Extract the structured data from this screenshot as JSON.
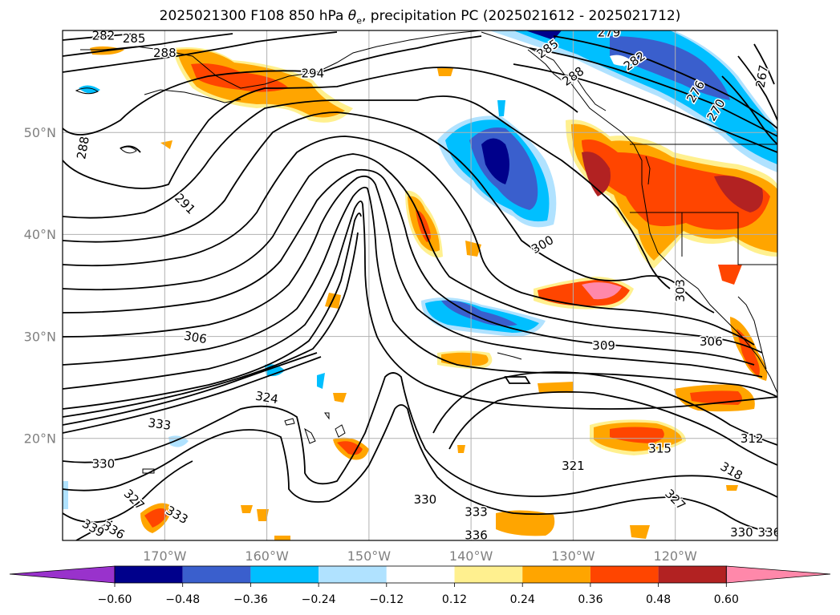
{
  "title": {
    "prefix": "2025021300 F108 850 hPa ",
    "symbol": "θ",
    "symbol_sub": "e",
    "suffix": ", precipitation PC (2025021612 - 2025021712)"
  },
  "map": {
    "lon_range": [
      -180,
      -110
    ],
    "lat_range": [
      10,
      60
    ],
    "lon_ticks": [
      {
        "value": -170,
        "label": "170°W"
      },
      {
        "value": -160,
        "label": "160°W"
      },
      {
        "value": -150,
        "label": "150°W"
      },
      {
        "value": -140,
        "label": "140°W"
      },
      {
        "value": -130,
        "label": "130°W"
      },
      {
        "value": -120,
        "label": "120°W"
      }
    ],
    "lat_ticks": [
      {
        "value": 20,
        "label": "20°N"
      },
      {
        "value": 30,
        "label": "30°N"
      },
      {
        "value": 40,
        "label": "40°N"
      },
      {
        "value": 50,
        "label": "50°N"
      }
    ],
    "gridlines": true,
    "contour_labels": [
      {
        "text": "282",
        "lon": -176,
        "lat": 59.5,
        "rot": 0
      },
      {
        "text": "285",
        "lon": -173,
        "lat": 59.2,
        "rot": 0
      },
      {
        "text": "288",
        "lon": -170,
        "lat": 57.8,
        "rot": 0
      },
      {
        "text": "294",
        "lon": -155.5,
        "lat": 55.8,
        "rot": 0
      },
      {
        "text": "279",
        "lon": -126.5,
        "lat": 59.8,
        "rot": 0
      },
      {
        "text": "285",
        "lon": -132.5,
        "lat": 58.2,
        "rot": 35
      },
      {
        "text": "288",
        "lon": -130,
        "lat": 55.5,
        "rot": 35
      },
      {
        "text": "282",
        "lon": -124,
        "lat": 57,
        "rot": 35
      },
      {
        "text": "276",
        "lon": -118,
        "lat": 54,
        "rot": 60
      },
      {
        "text": "270",
        "lon": -116,
        "lat": 52.2,
        "rot": 60
      },
      {
        "text": "267",
        "lon": -111.5,
        "lat": 55.5,
        "rot": 80
      },
      {
        "text": "288",
        "lon": -178,
        "lat": 48.5,
        "rot": 80
      },
      {
        "text": "291",
        "lon": -168,
        "lat": 43,
        "rot": -45
      },
      {
        "text": "300",
        "lon": -133,
        "lat": 39,
        "rot": 30
      },
      {
        "text": "303",
        "lon": -119.5,
        "lat": 34.5,
        "rot": 90
      },
      {
        "text": "306",
        "lon": -167,
        "lat": 29.9,
        "rot": -10
      },
      {
        "text": "309",
        "lon": -127,
        "lat": 29.1,
        "rot": 0
      },
      {
        "text": "306",
        "lon": -116.5,
        "lat": 29.5,
        "rot": 0
      },
      {
        "text": "324",
        "lon": -160,
        "lat": 24,
        "rot": -10
      },
      {
        "text": "333",
        "lon": -170.5,
        "lat": 21.4,
        "rot": -8
      },
      {
        "text": "315",
        "lon": -121.5,
        "lat": 19,
        "rot": 0
      },
      {
        "text": "312",
        "lon": -112.5,
        "lat": 20,
        "rot": 0
      },
      {
        "text": "321",
        "lon": -130,
        "lat": 17.3,
        "rot": 0
      },
      {
        "text": "318",
        "lon": -114.5,
        "lat": 16.8,
        "rot": -30
      },
      {
        "text": "330",
        "lon": -176,
        "lat": 17.5,
        "rot": 0
      },
      {
        "text": "327",
        "lon": -173,
        "lat": 14,
        "rot": -45
      },
      {
        "text": "327",
        "lon": -120,
        "lat": 14,
        "rot": -45
      },
      {
        "text": "330",
        "lon": -144.5,
        "lat": 14,
        "rot": 0
      },
      {
        "text": "333",
        "lon": -168.8,
        "lat": 12.5,
        "rot": -30
      },
      {
        "text": "333",
        "lon": -139.5,
        "lat": 12.8,
        "rot": 0
      },
      {
        "text": "336",
        "lon": -175,
        "lat": 11,
        "rot": -30
      },
      {
        "text": "339",
        "lon": -177,
        "lat": 11.2,
        "rot": -30
      },
      {
        "text": "336",
        "lon": -139.5,
        "lat": 10.5,
        "rot": 0
      },
      {
        "text": "330",
        "lon": -113.5,
        "lat": 10.8,
        "rot": 0
      },
      {
        "text": "336",
        "lon": -110.8,
        "lat": 10.8,
        "rot": 0
      }
    ]
  },
  "colorbar": {
    "colors": [
      "#9932cc",
      "#00008b",
      "#3a5fcd",
      "#00bfff",
      "#b0e2ff",
      "#ffffff",
      "#fff08f",
      "#ffa500",
      "#ff4500",
      "#b22222",
      "#ff88aa"
    ],
    "tick_labels": [
      "−0.60",
      "−0.48",
      "−0.36",
      "−0.24",
      "−0.12",
      "0.12",
      "0.24",
      "0.36",
      "0.48",
      "0.60"
    ]
  }
}
